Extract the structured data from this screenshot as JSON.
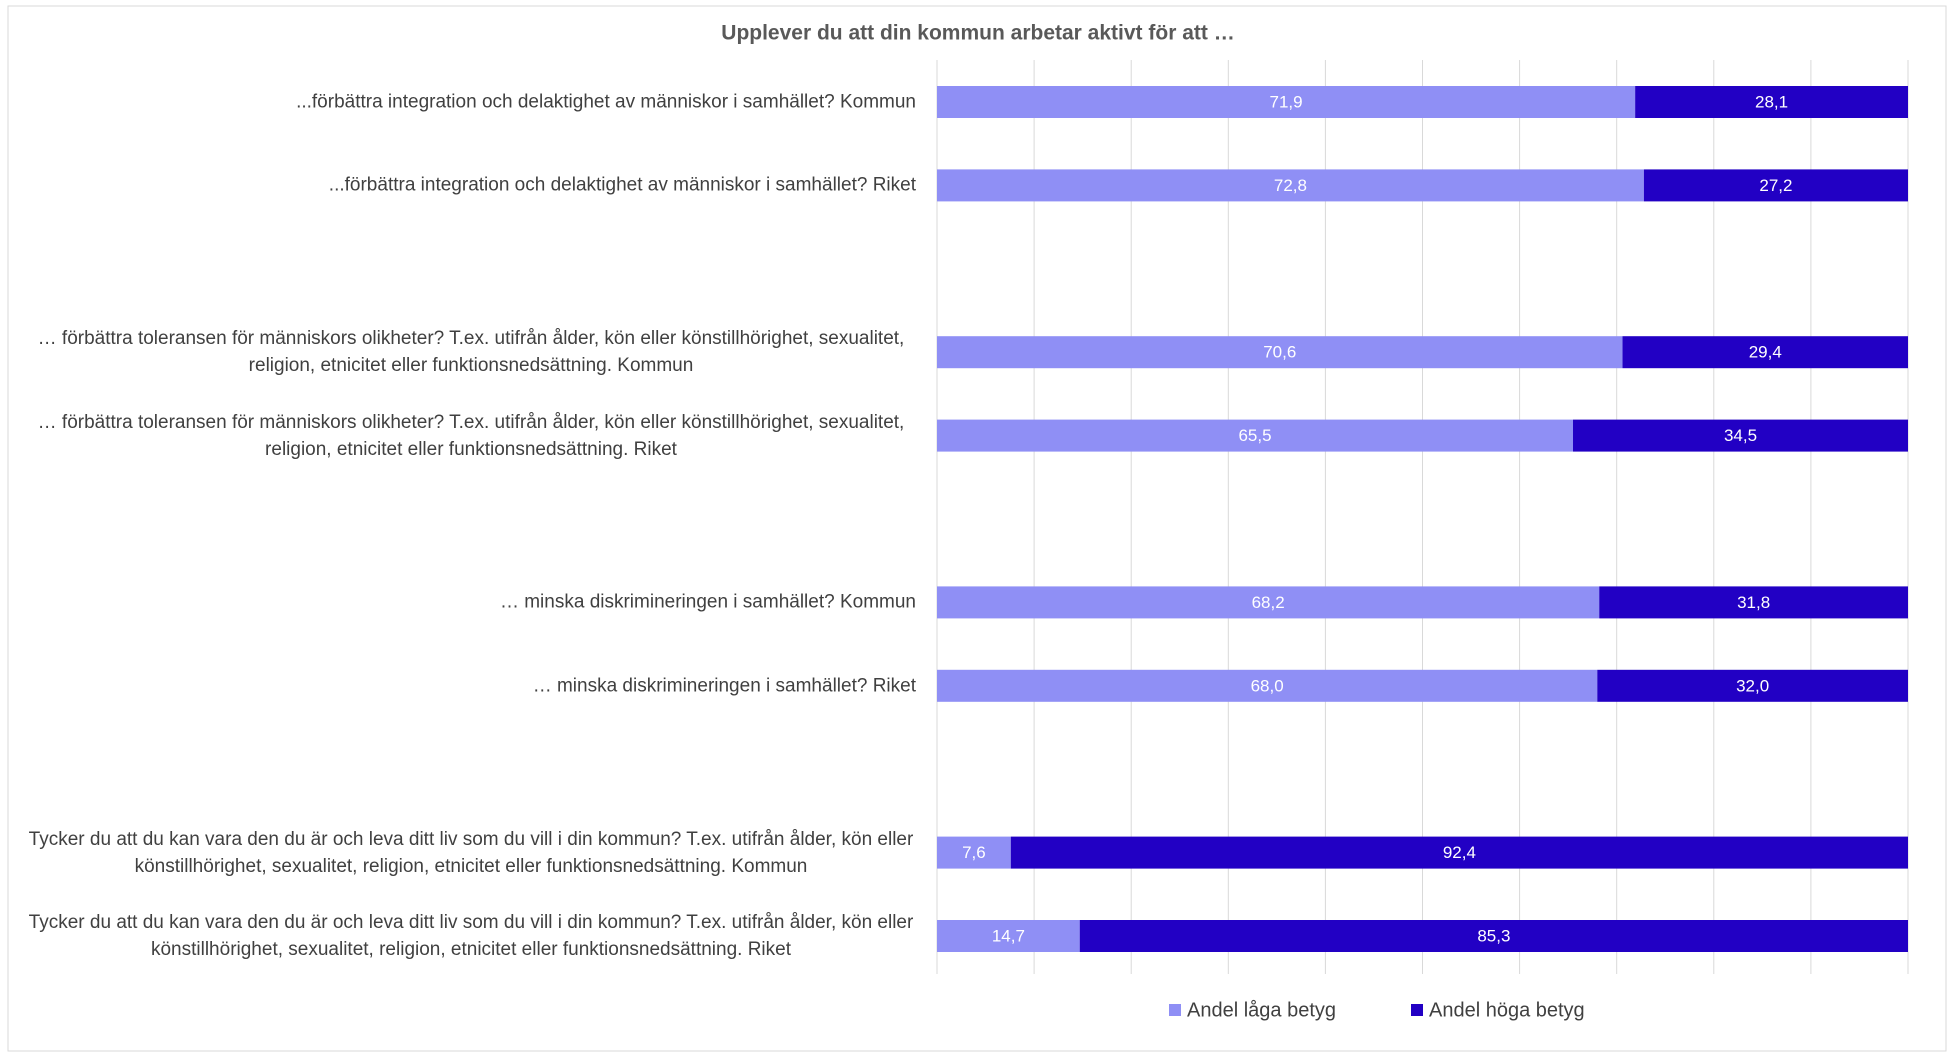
{
  "chart_data": {
    "type": "stacked-barh",
    "title": "Upplever du att din kommun arbetar aktivt för att …",
    "categories": [
      "...förbättra integration och delaktighet av människor i samhället? Kommun",
      "...förbättra integration och delaktighet av människor i samhället? Riket",
      null,
      "… förbättra toleransen för människors olikheter? T.ex. utifrån ålder, kön eller könstillhörighet, sexualitet, religion, etnicitet eller funktionsnedsättning. Kommun",
      "… förbättra toleransen för människors olikheter? T.ex. utifrån ålder, kön eller könstillhörighet, sexualitet, religion, etnicitet eller funktionsnedsättning. Riket",
      null,
      "… minska diskrimineringen i samhället? Kommun",
      "… minska diskrimineringen i samhället? Riket",
      null,
      "Tycker du att du kan vara den du är och leva ditt liv som du vill i din kommun? T.ex. utifrån ålder, kön eller könstillhörighet, sexualitet, religion, etnicitet eller funktionsnedsättning. Kommun",
      "Tycker du att du kan vara den du är och leva ditt liv som du vill i din kommun? T.ex. utifrån ålder, kön eller könstillhörighet, sexualitet, religion, etnicitet eller funktionsnedsättning. Riket"
    ],
    "series": [
      {
        "name": "Andel låga betyg",
        "color": "#8f8ff5",
        "values": [
          71.9,
          72.8,
          null,
          70.6,
          65.5,
          null,
          68.2,
          68.0,
          null,
          7.6,
          14.7
        ],
        "value_labels": [
          "71,9",
          "72,8",
          null,
          "70,6",
          "65,5",
          null,
          "68,2",
          "68,0",
          null,
          "7,6",
          "14,7"
        ]
      },
      {
        "name": "Andel höga betyg",
        "color": "#2200c4",
        "values": [
          28.1,
          27.2,
          null,
          29.4,
          34.5,
          null,
          31.8,
          32.0,
          null,
          92.4,
          85.3
        ],
        "value_labels": [
          "28,1",
          "27,2",
          null,
          "29,4",
          "34,5",
          null,
          "31,8",
          "32,0",
          null,
          "92,4",
          "85,3"
        ]
      }
    ],
    "xlim": [
      0,
      100
    ],
    "xticks": [
      0,
      10,
      20,
      30,
      40,
      50,
      60,
      70,
      80,
      90,
      100
    ],
    "grid": true,
    "legend": "bottom"
  }
}
